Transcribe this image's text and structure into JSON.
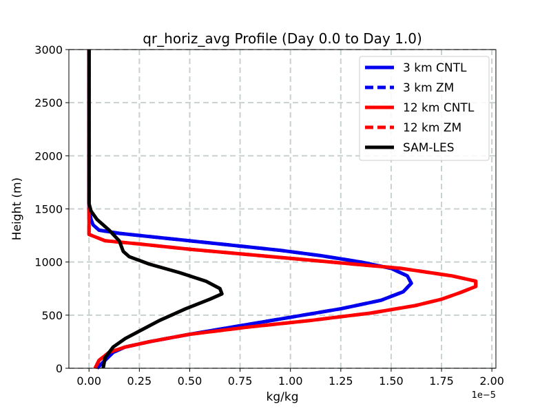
{
  "chart_data": {
    "type": "line",
    "title": "qr_horiz_avg Profile (Day 0.0 to Day 1.0)",
    "xlabel": "kg/kg",
    "ylabel": "Height (m)",
    "x_offset_label": "1e−5",
    "x_scale": 1e-05,
    "xlim": [
      -0.1,
      2.02
    ],
    "ylim": [
      0,
      3000
    ],
    "x_ticks": [
      0.0,
      0.25,
      0.5,
      0.75,
      1.0,
      1.25,
      1.5,
      1.75,
      2.0
    ],
    "x_tick_labels": [
      "0.00",
      "0.25",
      "0.50",
      "0.75",
      "1.00",
      "1.25",
      "1.50",
      "1.75",
      "2.00"
    ],
    "y_ticks": [
      0,
      500,
      1000,
      1500,
      2000,
      2500,
      3000
    ],
    "y_tick_labels": [
      "0",
      "500",
      "1000",
      "1500",
      "2000",
      "2500",
      "3000"
    ],
    "grid": true,
    "legend_position": "top-right",
    "colors": {
      "blue": "#0000ee",
      "red": "#ff0000",
      "black": "#000000",
      "grid": "#c8d0d0"
    },
    "series": [
      {
        "name": "3 km CNTL",
        "color": "#0000ee",
        "dash": false,
        "zorder": 1,
        "x": [
          0.04,
          0.08,
          0.12,
          0.18,
          0.3,
          0.5,
          0.75,
          1.0,
          1.25,
          1.45,
          1.56,
          1.6,
          1.58,
          1.5,
          1.35,
          1.15,
          0.95,
          0.75,
          0.55,
          0.4,
          0.25,
          0.15,
          0.05,
          0.02,
          0.01,
          0.0,
          0.0,
          0.0
        ],
        "y": [
          0,
          75,
          150,
          200,
          250,
          320,
          400,
          480,
          560,
          640,
          720,
          800,
          870,
          940,
          1000,
          1060,
          1110,
          1150,
          1190,
          1220,
          1250,
          1270,
          1300,
          1350,
          1400,
          1500,
          2000,
          3000
        ]
      },
      {
        "name": "3 km ZM",
        "color": "#0000ee",
        "dash": true,
        "zorder": 0,
        "x": [
          0.04,
          0.08,
          0.12,
          0.18,
          0.3,
          0.5,
          0.75,
          1.0,
          1.25,
          1.45,
          1.56,
          1.6,
          1.58,
          1.5,
          1.35,
          1.15,
          0.95,
          0.75,
          0.55,
          0.4,
          0.25,
          0.15,
          0.05,
          0.02,
          0.01,
          0.0,
          0.0,
          0.0
        ],
        "y": [
          0,
          75,
          150,
          200,
          250,
          320,
          400,
          480,
          560,
          640,
          720,
          800,
          870,
          940,
          1000,
          1060,
          1110,
          1150,
          1190,
          1220,
          1250,
          1270,
          1300,
          1350,
          1400,
          1500,
          2000,
          3000
        ]
      },
      {
        "name": "12 km CNTL",
        "color": "#ff0000",
        "dash": false,
        "zorder": 2,
        "x": [
          0.03,
          0.05,
          0.1,
          0.18,
          0.3,
          0.5,
          0.8,
          1.1,
          1.4,
          1.62,
          1.75,
          1.84,
          1.92,
          1.92,
          1.8,
          1.55,
          1.2,
          0.85,
          0.5,
          0.25,
          0.08,
          0.0,
          0.0,
          0.0,
          0.0
        ],
        "y": [
          0,
          75,
          150,
          200,
          250,
          320,
          390,
          450,
          520,
          590,
          650,
          710,
          770,
          820,
          870,
          940,
          1000,
          1060,
          1120,
          1170,
          1200,
          1260,
          1350,
          1500,
          3000
        ]
      },
      {
        "name": "12 km ZM",
        "color": "#ff0000",
        "dash": true,
        "zorder": 0,
        "x": [
          0.03,
          0.05,
          0.1,
          0.18,
          0.3,
          0.5,
          0.8,
          1.1,
          1.4,
          1.62,
          1.75,
          1.84,
          1.92,
          1.92,
          1.8,
          1.55,
          1.2,
          0.85,
          0.5,
          0.25,
          0.08,
          0.0,
          0.0,
          0.0,
          0.0
        ],
        "y": [
          0,
          75,
          150,
          200,
          250,
          320,
          390,
          450,
          520,
          590,
          650,
          710,
          770,
          820,
          870,
          940,
          1000,
          1060,
          1120,
          1170,
          1200,
          1260,
          1350,
          1500,
          3000
        ]
      },
      {
        "name": "SAM-LES",
        "color": "#000000",
        "dash": false,
        "zorder": 3,
        "x": [
          0.07,
          0.08,
          0.12,
          0.18,
          0.25,
          0.35,
          0.48,
          0.6,
          0.66,
          0.65,
          0.58,
          0.45,
          0.3,
          0.2,
          0.17,
          0.15,
          0.1,
          0.04,
          0.01,
          0.0,
          0.0,
          0.0
        ],
        "y": [
          0,
          100,
          200,
          280,
          350,
          450,
          560,
          650,
          700,
          750,
          820,
          900,
          980,
          1050,
          1100,
          1200,
          1300,
          1400,
          1480,
          1550,
          2000,
          3000
        ]
      }
    ]
  }
}
